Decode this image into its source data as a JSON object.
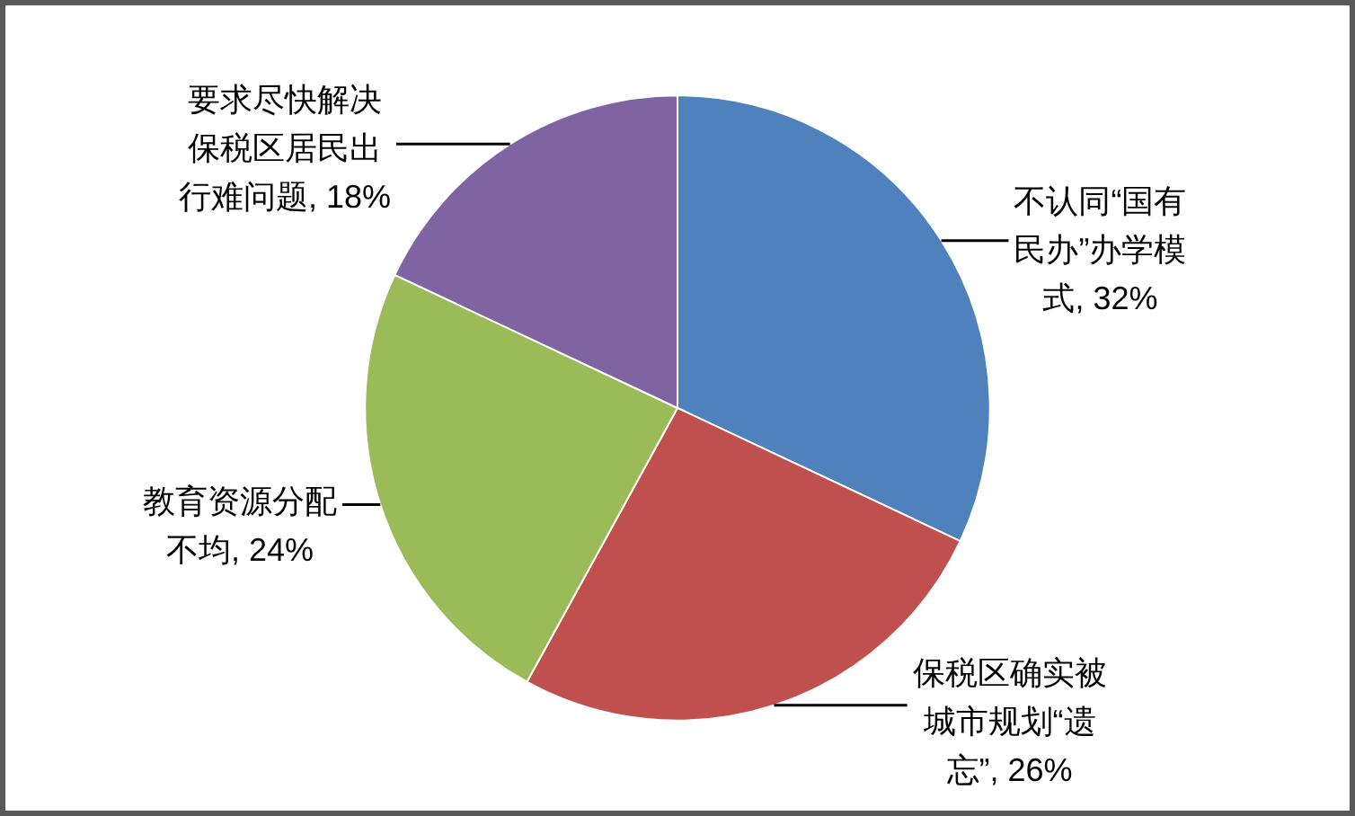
{
  "chart_data": {
    "type": "pie",
    "categories": [
      "不认同“国有民办”办学模式",
      "保税区确实被城市规划“遗忘”",
      "教育资源分配不均",
      "要求尽快解决保税区居民出行难问题"
    ],
    "values": [
      32,
      26,
      24,
      18
    ],
    "colors": [
      "#4f81bd",
      "#c0504d",
      "#9bbb59",
      "#8064a2"
    ],
    "value_labels": [
      "32%",
      "26%",
      "24%",
      "18%"
    ]
  }
}
